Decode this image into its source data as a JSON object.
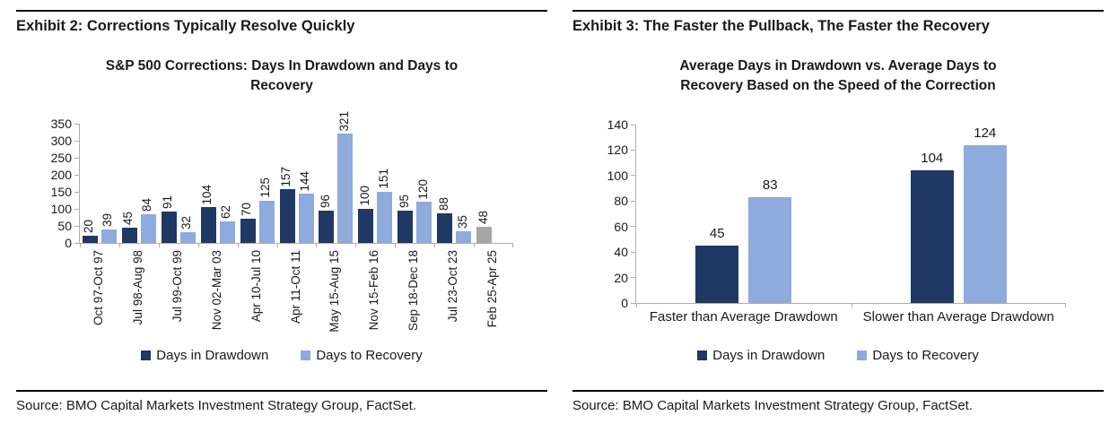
{
  "exhibits": [
    {
      "header": "Exhibit 2: Corrections Typically Resolve Quickly",
      "source": "Source: BMO Capital Markets Investment Strategy Group, FactSet."
    },
    {
      "header": "Exhibit 3: The Faster the Pullback, The Faster the Recovery",
      "source": "Source: BMO Capital Markets Investment Strategy Group, FactSet."
    }
  ],
  "colors": {
    "days_in_drawdown": "#1f3864",
    "days_to_recovery": "#8faadc",
    "ongoing_drawdown_gray": "#a6a6a6",
    "axis_line": "#adadad",
    "rule": "#000000",
    "text": "#1a1a1a"
  },
  "chart_data": [
    {
      "type": "bar",
      "title": "S&P 500 Corrections: Days In Drawdown and Days to Recovery",
      "title_lines": [
        "S&P 500 Corrections: Days In Drawdown and Days to",
        "Recovery"
      ],
      "categories": [
        "Oct 97-Oct 97",
        "Jul 98-Aug 98",
        "Jul 99-Oct 99",
        "Nov 02-Mar 03",
        "Apr 10-Jul 10",
        "Apr 11-Oct 11",
        "May 15-Aug 15",
        "Nov 15-Feb 16",
        "Sep 18-Dec 18",
        "Jul 23-Oct 23",
        "Feb 25-Apr 25"
      ],
      "series": [
        {
          "name": "Days in Drawdown",
          "color": "#1f3864",
          "values": [
            20,
            45,
            91,
            104,
            70,
            157,
            96,
            100,
            95,
            88,
            48
          ],
          "override_colors": {
            "10": "#a6a6a6"
          }
        },
        {
          "name": "Days to Recovery",
          "color": "#8faadc",
          "values": [
            39,
            84,
            32,
            62,
            125,
            144,
            321,
            151,
            120,
            35,
            null
          ]
        }
      ],
      "ylim": [
        0,
        350
      ],
      "ytick_step": 50,
      "value_label_rotation": 90,
      "category_label_rotation": 90,
      "legend_position": "bottom",
      "grid": false
    },
    {
      "type": "bar",
      "title": "Average Days in Drawdown vs. Average Days to Recovery Based on the Speed of the Correction",
      "title_lines": [
        "Average Days in Drawdown vs. Average Days to",
        "Recovery Based on the Speed of the Correction"
      ],
      "categories": [
        "Faster than Average Drawdown",
        "Slower than Average Drawdown"
      ],
      "series": [
        {
          "name": "Days in Drawdown",
          "color": "#1f3864",
          "values": [
            45,
            104
          ]
        },
        {
          "name": "Days to Recovery",
          "color": "#8faadc",
          "values": [
            83,
            124
          ]
        }
      ],
      "ylim": [
        0,
        140
      ],
      "ytick_step": 20,
      "value_label_rotation": 0,
      "category_label_rotation": 0,
      "legend_position": "bottom",
      "grid": false
    }
  ]
}
